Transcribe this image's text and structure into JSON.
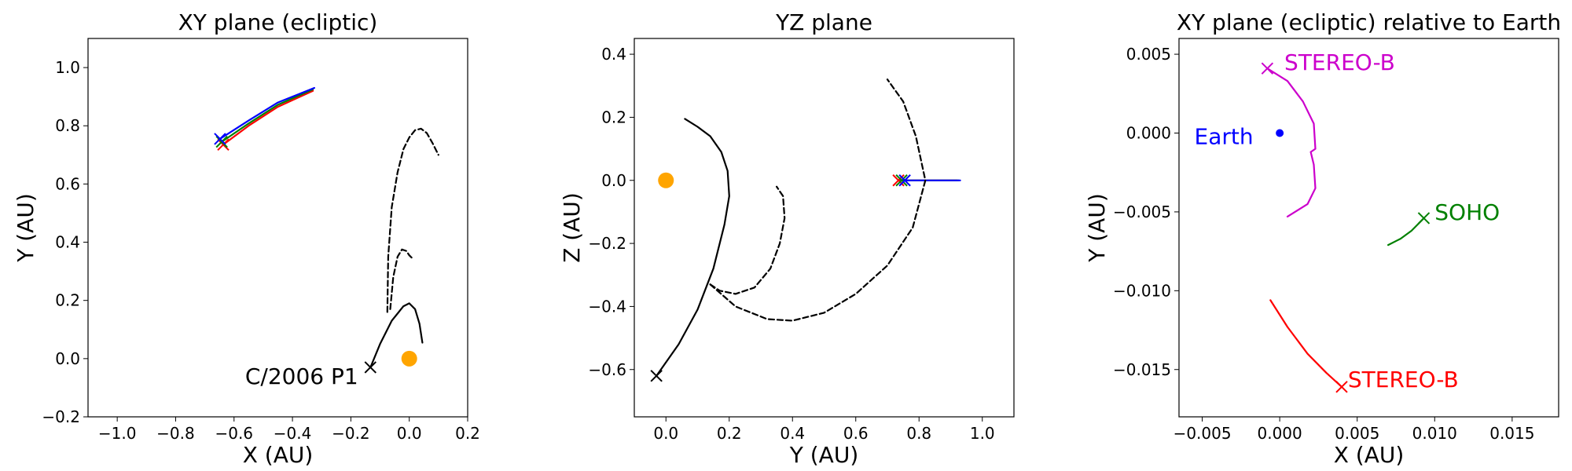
{
  "chart_data": [
    {
      "type": "line",
      "title": "XY plane (ecliptic)",
      "xlabel": "X (AU)",
      "ylabel": "Y (AU)",
      "xlim": [
        -1.1,
        0.2
      ],
      "ylim": [
        -0.2,
        1.1
      ],
      "xticks": [
        -1.0,
        -0.8,
        -0.6,
        -0.4,
        -0.2,
        0.0,
        0.2
      ],
      "xtick_labels": [
        "−1.0",
        "−0.8",
        "−0.6",
        "−0.4",
        "−0.2",
        "0.0",
        "0.2"
      ],
      "yticks": [
        -0.2,
        0.0,
        0.2,
        0.4,
        0.6,
        0.8,
        1.0
      ],
      "ytick_labels": [
        "−0.2",
        "0.0",
        "0.2",
        "0.4",
        "0.6",
        "0.8",
        "1.0"
      ],
      "sun": {
        "x": 0.0,
        "y": 0.0,
        "color": "#FFA500"
      },
      "series": [
        {
          "color": "#ff0000",
          "style": "solid",
          "x": [
            -0.637,
            -0.55,
            -0.45,
            -0.33
          ],
          "y": [
            0.735,
            0.8,
            0.865,
            0.92
          ]
        },
        {
          "color": "#008000",
          "style": "solid",
          "x": [
            -0.642,
            -0.55,
            -0.45,
            -0.33
          ],
          "y": [
            0.745,
            0.808,
            0.872,
            0.925
          ]
        },
        {
          "color": "#0000ff",
          "style": "solid",
          "x": [
            -0.648,
            -0.55,
            -0.45,
            -0.325
          ],
          "y": [
            0.755,
            0.818,
            0.88,
            0.93
          ]
        },
        {
          "color": "#000000",
          "style": "solid",
          "x": [
            -0.133,
            -0.1,
            -0.06,
            -0.02,
            0.0,
            0.02,
            0.035,
            0.045
          ],
          "y": [
            -0.03,
            0.05,
            0.13,
            0.18,
            0.19,
            0.17,
            0.12,
            0.055
          ]
        },
        {
          "color": "#000000",
          "style": "dashed",
          "x": [
            -0.075,
            -0.072,
            -0.06,
            -0.04,
            -0.02,
            0.0,
            0.02,
            0.04,
            0.06,
            0.08,
            0.1
          ],
          "y": [
            0.16,
            0.35,
            0.52,
            0.64,
            0.72,
            0.76,
            0.785,
            0.79,
            0.775,
            0.74,
            0.7
          ]
        },
        {
          "color": "#000000",
          "style": "dashed",
          "x": [
            -0.065,
            -0.055,
            -0.04,
            -0.025,
            -0.01,
            0.0,
            0.01
          ],
          "y": [
            0.17,
            0.28,
            0.35,
            0.375,
            0.37,
            0.355,
            0.345
          ]
        }
      ],
      "markers": [
        {
          "x": -0.637,
          "y": 0.735,
          "color": "#ff0000"
        },
        {
          "x": -0.642,
          "y": 0.745,
          "color": "#008000"
        },
        {
          "x": -0.648,
          "y": 0.755,
          "color": "#0000ff"
        },
        {
          "x": -0.133,
          "y": -0.03,
          "color": "#000000"
        }
      ],
      "annotations": [
        {
          "text": "C/2006 P1",
          "x": -0.175,
          "y": -0.06,
          "anchor": "end",
          "color": "#000000"
        }
      ]
    },
    {
      "type": "line",
      "title": "YZ plane",
      "xlabel": "Y (AU)",
      "ylabel": "Z (AU)",
      "xlim": [
        -0.1,
        1.1
      ],
      "ylim": [
        -0.75,
        0.45
      ],
      "xticks": [
        0.0,
        0.2,
        0.4,
        0.6,
        0.8,
        1.0
      ],
      "xtick_labels": [
        "0.0",
        "0.2",
        "0.4",
        "0.6",
        "0.8",
        "1.0"
      ],
      "yticks": [
        -0.6,
        -0.4,
        -0.2,
        0.0,
        0.2,
        0.4
      ],
      "ytick_labels": [
        "−0.6",
        "−0.4",
        "−0.2",
        "0.0",
        "0.2",
        "0.4"
      ],
      "sun": {
        "x": 0.0,
        "y": 0.0,
        "color": "#FFA500"
      },
      "series": [
        {
          "color": "#ff0000",
          "style": "solid",
          "x": [
            0.735,
            0.8,
            0.865,
            0.92
          ],
          "y": [
            0.0,
            0.0,
            0.0,
            0.0
          ]
        },
        {
          "color": "#008000",
          "style": "solid",
          "x": [
            0.745,
            0.808,
            0.872,
            0.925
          ],
          "y": [
            0.0,
            0.0,
            0.0,
            0.0
          ]
        },
        {
          "color": "#0000ff",
          "style": "solid",
          "x": [
            0.755,
            0.82,
            0.88,
            0.93
          ],
          "y": [
            0.0,
            0.0,
            0.0,
            0.0
          ]
        },
        {
          "color": "#000000",
          "style": "solid",
          "x": [
            -0.03,
            0.04,
            0.1,
            0.15,
            0.185,
            0.2,
            0.195,
            0.175,
            0.14,
            0.1,
            0.06
          ],
          "y": [
            -0.62,
            -0.52,
            -0.41,
            -0.28,
            -0.14,
            -0.05,
            0.03,
            0.09,
            0.14,
            0.17,
            0.195
          ]
        },
        {
          "color": "#000000",
          "style": "dashed",
          "x": [
            0.14,
            0.17,
            0.22,
            0.28,
            0.33,
            0.36,
            0.375,
            0.37,
            0.35
          ],
          "y": [
            -0.33,
            -0.35,
            -0.36,
            -0.34,
            -0.28,
            -0.2,
            -0.12,
            -0.05,
            -0.02
          ]
        },
        {
          "color": "#000000",
          "style": "dashed",
          "x": [
            0.14,
            0.22,
            0.32,
            0.4,
            0.5,
            0.6,
            0.7,
            0.78,
            0.82,
            0.79,
            0.75,
            0.7
          ],
          "y": [
            -0.33,
            -0.4,
            -0.44,
            -0.445,
            -0.42,
            -0.36,
            -0.27,
            -0.15,
            0.0,
            0.14,
            0.25,
            0.32
          ]
        }
      ],
      "markers": [
        {
          "x": 0.735,
          "y": 0.0,
          "color": "#ff0000"
        },
        {
          "x": 0.745,
          "y": 0.0,
          "color": "#008000"
        },
        {
          "x": 0.755,
          "y": 0.0,
          "color": "#0000ff"
        },
        {
          "x": -0.03,
          "y": -0.62,
          "color": "#000000"
        }
      ],
      "annotations": []
    },
    {
      "type": "line",
      "title": "XY plane (ecliptic) relative to Earth",
      "xlabel": "X (AU)",
      "ylabel": "Y (AU)",
      "xlim": [
        -0.0065,
        0.018
      ],
      "ylim": [
        -0.018,
        0.006
      ],
      "xticks": [
        -0.005,
        0.0,
        0.005,
        0.01,
        0.015
      ],
      "xtick_labels": [
        "−0.005",
        "0.000",
        "0.005",
        "0.010",
        "0.015"
      ],
      "yticks": [
        -0.015,
        -0.01,
        -0.005,
        0.0,
        0.005
      ],
      "ytick_labels": [
        "−0.015",
        "−0.010",
        "−0.005",
        "0.000",
        "0.005"
      ],
      "earth": {
        "x": 0.0,
        "y": 0.0,
        "color": "#0000ff"
      },
      "series": [
        {
          "color": "#cc00cc",
          "style": "solid",
          "x": [
            -0.0008,
            0.0005,
            0.0015,
            0.0022,
            0.0023,
            0.002,
            0.0022,
            0.0023,
            0.0018,
            0.0005
          ],
          "y": [
            0.0041,
            0.0033,
            0.002,
            0.0006,
            -0.001,
            -0.0012,
            -0.002,
            -0.0035,
            -0.0045,
            -0.0053
          ]
        },
        {
          "color": "#008000",
          "style": "solid",
          "x": [
            0.0093,
            0.0085,
            0.0078,
            0.007
          ],
          "y": [
            -0.0054,
            -0.0062,
            -0.0067,
            -0.0071
          ]
        },
        {
          "color": "#ff0000",
          "style": "solid",
          "x": [
            -0.0006,
            0.0005,
            0.0018,
            0.003,
            0.004
          ],
          "y": [
            -0.0106,
            -0.0123,
            -0.014,
            -0.0152,
            -0.0161
          ]
        }
      ],
      "markers": [
        {
          "x": -0.0008,
          "y": 0.0041,
          "color": "#cc00cc"
        },
        {
          "x": 0.0093,
          "y": -0.0054,
          "color": "#008000"
        },
        {
          "x": 0.004,
          "y": -0.0161,
          "color": "#ff0000"
        }
      ],
      "annotations": [
        {
          "text": "STEREO-B",
          "x": 0.0003,
          "y": 0.0045,
          "anchor": "start",
          "color": "#cc00cc"
        },
        {
          "text": "Earth",
          "x": -0.0017,
          "y": -0.0002,
          "anchor": "end",
          "color": "#0000ff"
        },
        {
          "text": "SOHO",
          "x": 0.01,
          "y": -0.005,
          "anchor": "start",
          "color": "#008000"
        },
        {
          "text": "STEREO-B",
          "x": 0.0044,
          "y": -0.0156,
          "anchor": "start",
          "color": "#ff0000"
        }
      ]
    }
  ]
}
